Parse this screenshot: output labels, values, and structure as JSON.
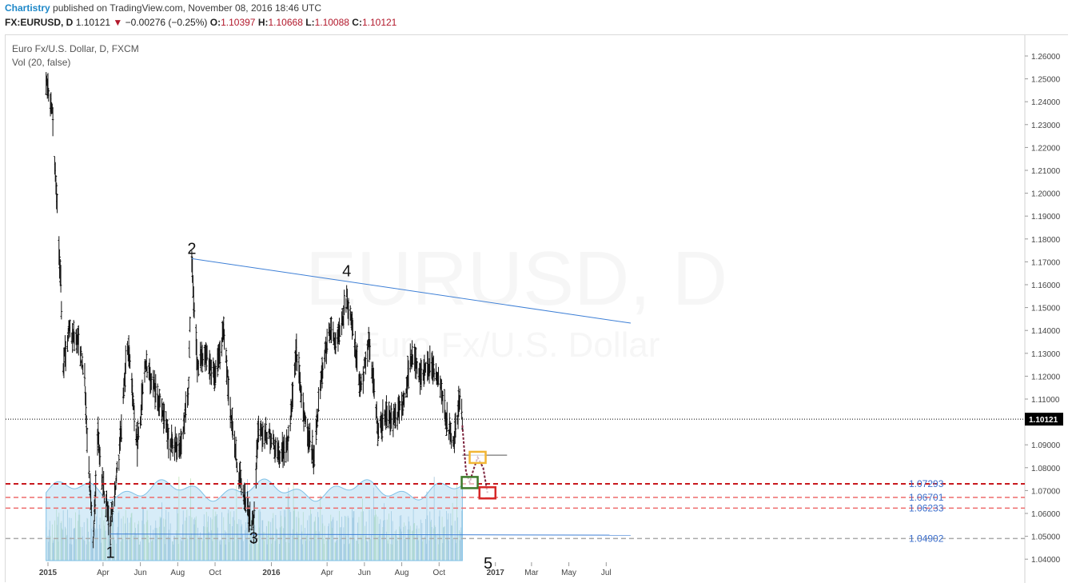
{
  "header": {
    "author": "Chartistry",
    "published": "published on TradingView.com, November 08, 2016 18:46 UTC",
    "symbol": "FX:EURUSD, D",
    "last": "1.10121",
    "change": "−0.00276 (−0.25%)",
    "o_label": "O:",
    "o_value": "1.10397",
    "h_label": "H:",
    "h_value": "1.10668",
    "l_label": "L:",
    "l_value": "1.10088",
    "c_label": "C:",
    "c_value": "1.10121"
  },
  "legend": {
    "symbol_title": "Euro Fx/U.S. Dollar, D, FXCM",
    "indicator": "Vol (20, false)"
  },
  "colors": {
    "candle": "#111111",
    "trendline": "#3d7fd6",
    "volume_ma": "#a7d4ef",
    "volume_bar": "#9fc4d9",
    "volume_up_bar": "#bfe2b8",
    "support_dark": "#c8191e",
    "support_light": "#ee6b6b",
    "support_grey": "#aaaaaa",
    "last_price_bg": "#000000",
    "path": "#7a1f3a",
    "box_green": "#3d7a2a",
    "box_yellow": "#f2b635",
    "box_red": "#d62828"
  },
  "chart_data": {
    "type": "candlestick",
    "title": "EURUSD, D",
    "subtitle": "Euro Fx/U.S. Dollar",
    "x_tick_labels": [
      "2015",
      "Apr",
      "Jun",
      "Aug",
      "Oct",
      "2016",
      "Apr",
      "Jun",
      "Aug",
      "Oct",
      "2017",
      "Mar",
      "May",
      "Jul"
    ],
    "y_tick_labels": [
      "1.26000",
      "1.25000",
      "1.24000",
      "1.23000",
      "1.22000",
      "1.21000",
      "1.20000",
      "1.19000",
      "1.18000",
      "1.17000",
      "1.16000",
      "1.15000",
      "1.14000",
      "1.13000",
      "1.12000",
      "1.11000",
      "1.10000",
      "1.09000",
      "1.08000",
      "1.07000",
      "1.06000",
      "1.05000",
      "1.04000"
    ],
    "ylim": [
      1.035,
      1.265
    ],
    "last_price": "1.10121",
    "price_path": [
      [
        "2014-12-29",
        1.25
      ],
      [
        "2015-01-08",
        1.235
      ],
      [
        "2015-01-15",
        1.2
      ],
      [
        "2015-01-22",
        1.16
      ],
      [
        "2015-01-26",
        1.125
      ],
      [
        "2015-02-05",
        1.14
      ],
      [
        "2015-02-20",
        1.135
      ],
      [
        "2015-03-02",
        1.12
      ],
      [
        "2015-03-06",
        1.09
      ],
      [
        "2015-03-16",
        1.05
      ],
      [
        "2015-03-24",
        1.095
      ],
      [
        "2015-03-30",
        1.075
      ],
      [
        "2015-04-13",
        1.055
      ],
      [
        "2015-04-27",
        1.085
      ],
      [
        "2015-05-11",
        1.135
      ],
      [
        "2015-05-27",
        1.09
      ],
      [
        "2015-06-10",
        1.125
      ],
      [
        "2015-06-24",
        1.115
      ],
      [
        "2015-07-06",
        1.105
      ],
      [
        "2015-07-20",
        1.09
      ],
      [
        "2015-08-05",
        1.09
      ],
      [
        "2015-08-18",
        1.11
      ],
      [
        "2015-08-24",
        1.17
      ],
      [
        "2015-09-02",
        1.125
      ],
      [
        "2015-09-15",
        1.13
      ],
      [
        "2015-10-01",
        1.12
      ],
      [
        "2015-10-15",
        1.14
      ],
      [
        "2015-10-28",
        1.1
      ],
      [
        "2015-11-10",
        1.075
      ],
      [
        "2015-11-25",
        1.06
      ],
      [
        "2015-12-03",
        1.055
      ],
      [
        "2015-12-10",
        1.095
      ],
      [
        "2015-12-28",
        1.095
      ],
      [
        "2016-01-12",
        1.085
      ],
      [
        "2016-01-28",
        1.09
      ],
      [
        "2016-02-11",
        1.13
      ],
      [
        "2016-02-25",
        1.1
      ],
      [
        "2016-03-10",
        1.085
      ],
      [
        "2016-03-22",
        1.12
      ],
      [
        "2016-04-05",
        1.14
      ],
      [
        "2016-04-19",
        1.135
      ],
      [
        "2016-05-03",
        1.155
      ],
      [
        "2016-05-12",
        1.14
      ],
      [
        "2016-05-26",
        1.115
      ],
      [
        "2016-06-08",
        1.135
      ],
      [
        "2016-06-24",
        1.095
      ],
      [
        "2016-07-07",
        1.105
      ],
      [
        "2016-07-20",
        1.1
      ],
      [
        "2016-08-05",
        1.11
      ],
      [
        "2016-08-18",
        1.13
      ],
      [
        "2016-09-01",
        1.12
      ],
      [
        "2016-09-15",
        1.125
      ],
      [
        "2016-09-30",
        1.12
      ],
      [
        "2016-10-14",
        1.1
      ],
      [
        "2016-10-25",
        1.09
      ],
      [
        "2016-11-03",
        1.11
      ],
      [
        "2016-11-08",
        1.101
      ]
    ],
    "wave_labels": [
      {
        "label": "1",
        "date": "2015-04-13",
        "price": 1.0462
      },
      {
        "label": "2",
        "date": "2015-08-24",
        "price": 1.1714
      },
      {
        "label": "3",
        "date": "2015-12-03",
        "price": 1.0524
      },
      {
        "label": "4",
        "date": "2016-05-03",
        "price": 1.1616
      },
      {
        "label": "5",
        "date": "2016-12-20",
        "price": 1.0415
      }
    ],
    "trendlines": [
      {
        "name": "upper",
        "from": [
          "2015-08-24",
          1.1714
        ],
        "to": [
          "2017-08-10",
          1.1432
        ]
      },
      {
        "name": "lower",
        "from": [
          "2015-04-13",
          1.051
        ],
        "to": [
          "2017-08-10",
          1.0505
        ]
      }
    ],
    "support_levels": [
      {
        "label": "1.07293",
        "value": 1.07293,
        "style": "dark"
      },
      {
        "label": "1.06701",
        "value": 1.06701,
        "style": "light"
      },
      {
        "label": "1.06233",
        "value": 1.06233,
        "style": "light"
      },
      {
        "label": "1.04902",
        "value": 1.04902,
        "style": "grey"
      }
    ],
    "projection": [
      [
        "2016-11-08",
        1.0985
      ],
      [
        "2016-11-14",
        1.078
      ],
      [
        "2016-11-20",
        1.0735
      ],
      [
        "2016-11-26",
        1.079
      ],
      [
        "2016-12-03",
        1.0845
      ],
      [
        "2016-12-12",
        1.08
      ],
      [
        "2016-12-19",
        1.069
      ]
    ],
    "marker_boxes": [
      {
        "color": "green",
        "date": "2016-11-20",
        "price": 1.0735
      },
      {
        "color": "yellow",
        "date": "2016-12-03",
        "price": 1.0845
      },
      {
        "color": "red",
        "date": "2016-12-19",
        "price": 1.069
      }
    ],
    "horizontal_segment": {
      "from": "2016-11-08",
      "to": "2017-01-20",
      "price": 1.0855
    }
  }
}
